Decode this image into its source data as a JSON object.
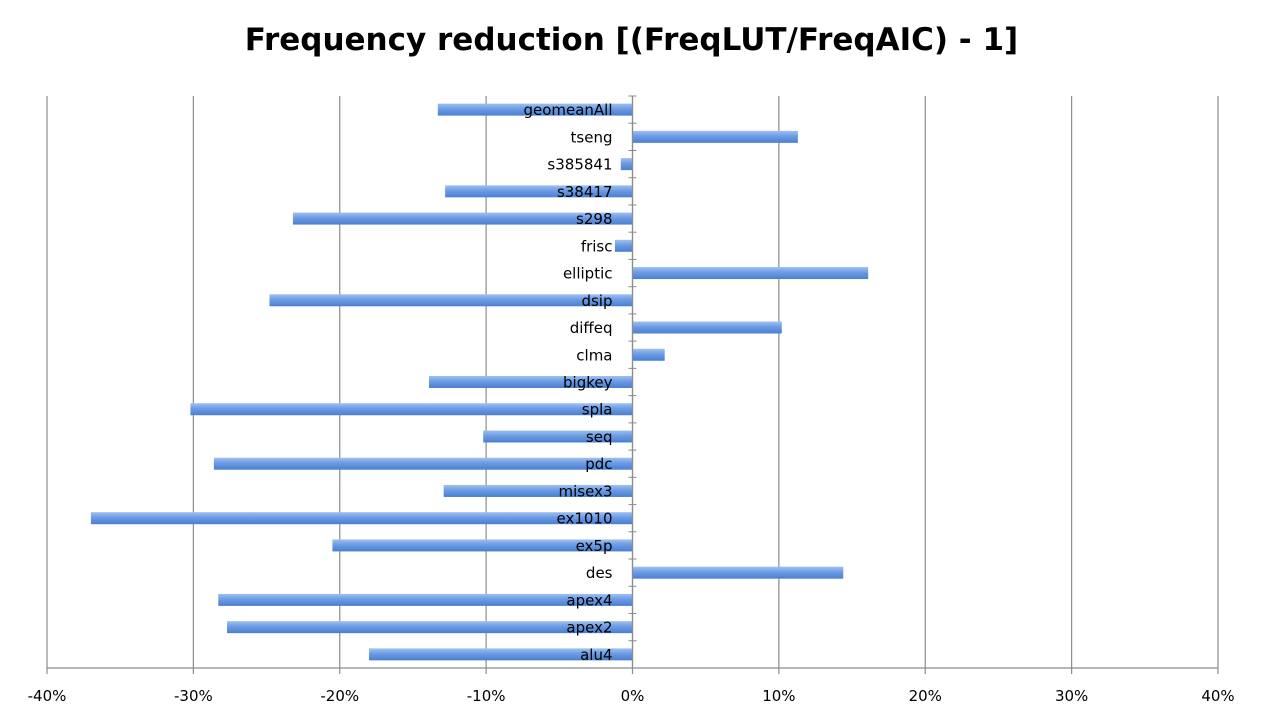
{
  "chart_data": {
    "type": "bar",
    "orientation": "horizontal",
    "title": "Frequency reduction [(FreqLUT/FreqAIC) - 1]",
    "xlabel": "",
    "ylabel": "",
    "xlim": [
      -0.4,
      0.4
    ],
    "x_ticks": [
      "-40%",
      "-30%",
      "-20%",
      "-10%",
      "0%",
      "10%",
      "20%",
      "30%",
      "40%"
    ],
    "grid": "vertical gridlines on",
    "legend": "none",
    "categories": [
      "alu4",
      "apex2",
      "apex4",
      "des",
      "ex5p",
      "ex1010",
      "misex3",
      "pdc",
      "seq",
      "spla",
      "bigkey",
      "clma",
      "diffeq",
      "dsip",
      "elliptic",
      "frisc",
      "s298",
      "s38417",
      "s385841",
      "tseng",
      "geomeanAll"
    ],
    "values": [
      -0.18,
      -0.277,
      -0.283,
      0.144,
      -0.205,
      -0.37,
      -0.129,
      -0.286,
      -0.102,
      -0.302,
      -0.139,
      0.022,
      0.102,
      -0.248,
      0.161,
      -0.012,
      -0.232,
      -0.128,
      -0.008,
      0.113,
      -0.133
    ],
    "bar_color": "#5b8fd9"
  }
}
